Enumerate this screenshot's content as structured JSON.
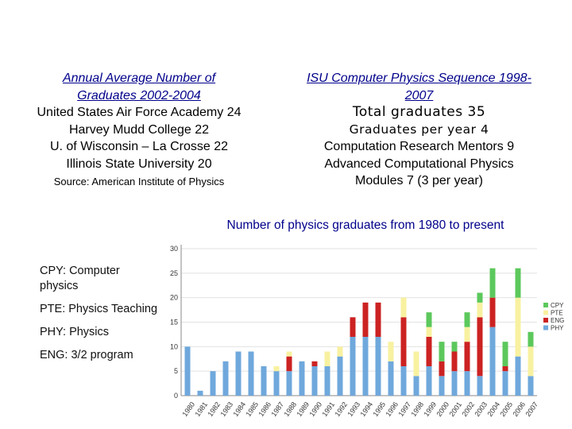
{
  "left_panel": {
    "title": [
      "Annual Average Number of",
      "Graduates 2002-2004"
    ],
    "lines": [
      "United States Air Force Academy  24",
      "Harvey Mudd College  22",
      "U. of Wisconsin – La Crosse  22",
      "Illinois State University  20"
    ],
    "source": "Source: American Institute of Physics"
  },
  "right_panel": {
    "title": [
      "ISU Computer Physics Sequence 1998-",
      "2007"
    ],
    "total": "Total graduates  35",
    "per_year": "Graduates per year  4",
    "mentors": "Computation Research Mentors  9",
    "modules_a": "Advanced Computational Physics",
    "modules_b": "Modules  7 (3 per year)"
  },
  "side_labels": [
    "CPY: Computer physics",
    "PTE: Physics Teaching",
    "PHY: Physics",
    "ENG: 3/2 program"
  ],
  "colors": {
    "PHY": "#6fa8dc",
    "ENG": "#cc2222",
    "PTE": "#f8f1a0",
    "CPY": "#5cc85c"
  },
  "chart_data": {
    "type": "bar",
    "stacked": true,
    "title": "Number of physics graduates from 1980 to present",
    "categories": [
      "1980",
      "1981",
      "1982",
      "1983",
      "1984",
      "1985",
      "1986",
      "1987",
      "1988",
      "1989",
      "1990",
      "1991",
      "1992",
      "1993",
      "1994",
      "1995",
      "1996",
      "1997",
      "1998",
      "1999",
      "2000",
      "2001",
      "2002",
      "2003",
      "2004",
      "2005",
      "2006",
      "2007"
    ],
    "ylim": [
      0,
      30
    ],
    "yticks": [
      0,
      5,
      10,
      15,
      20,
      25,
      30
    ],
    "legend_position": "right",
    "legend": [
      "CPY",
      "PTE",
      "ENG",
      "PHY"
    ],
    "series": [
      {
        "name": "PHY",
        "values": [
          10,
          1,
          5,
          7,
          9,
          9,
          6,
          5,
          5,
          7,
          6,
          6,
          8,
          12,
          12,
          12,
          7,
          6,
          4,
          6,
          4,
          5,
          5,
          4,
          14,
          5,
          8,
          4
        ]
      },
      {
        "name": "ENG",
        "values": [
          0,
          0,
          0,
          0,
          0,
          0,
          0,
          0,
          3,
          0,
          1,
          0,
          0,
          4,
          7,
          7,
          0,
          10,
          0,
          6,
          3,
          4,
          6,
          12,
          6,
          1,
          0,
          0
        ]
      },
      {
        "name": "PTE",
        "values": [
          0,
          0,
          0,
          0,
          0,
          0,
          0,
          1,
          1,
          0,
          0,
          3,
          2,
          0,
          0,
          0,
          4,
          4,
          5,
          2,
          0,
          0,
          3,
          3,
          0,
          0,
          12,
          6
        ]
      },
      {
        "name": "CPY",
        "values": [
          0,
          0,
          0,
          0,
          0,
          0,
          0,
          0,
          0,
          0,
          0,
          0,
          0,
          0,
          0,
          0,
          0,
          0,
          0,
          3,
          4,
          2,
          3,
          2,
          6,
          5,
          6,
          3
        ]
      }
    ]
  }
}
